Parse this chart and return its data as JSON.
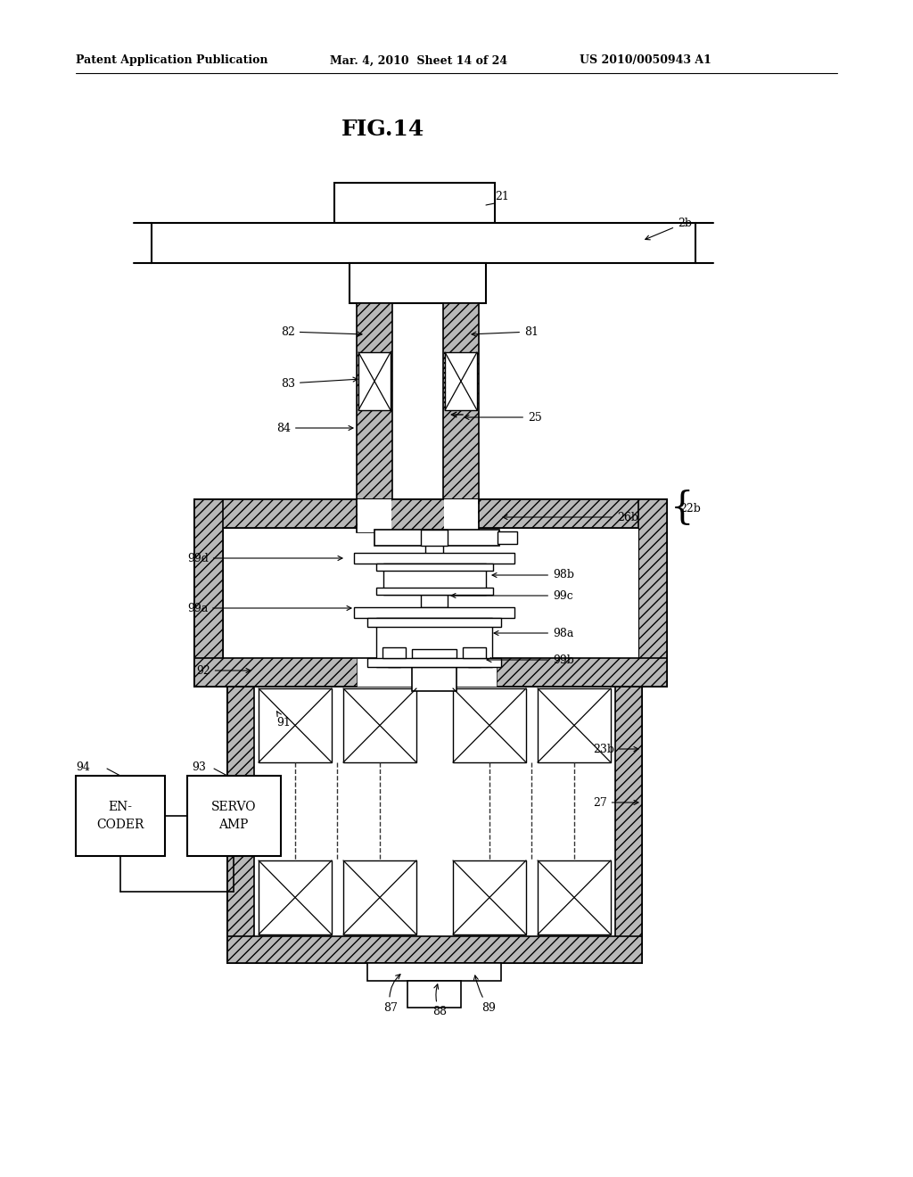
{
  "header_left": "Patent Application Publication",
  "header_mid": "Mar. 4, 2010  Sheet 14 of 24",
  "header_right": "US 2010/0050943 A1",
  "fig_title": "FIG.14",
  "bg_color": "#ffffff"
}
